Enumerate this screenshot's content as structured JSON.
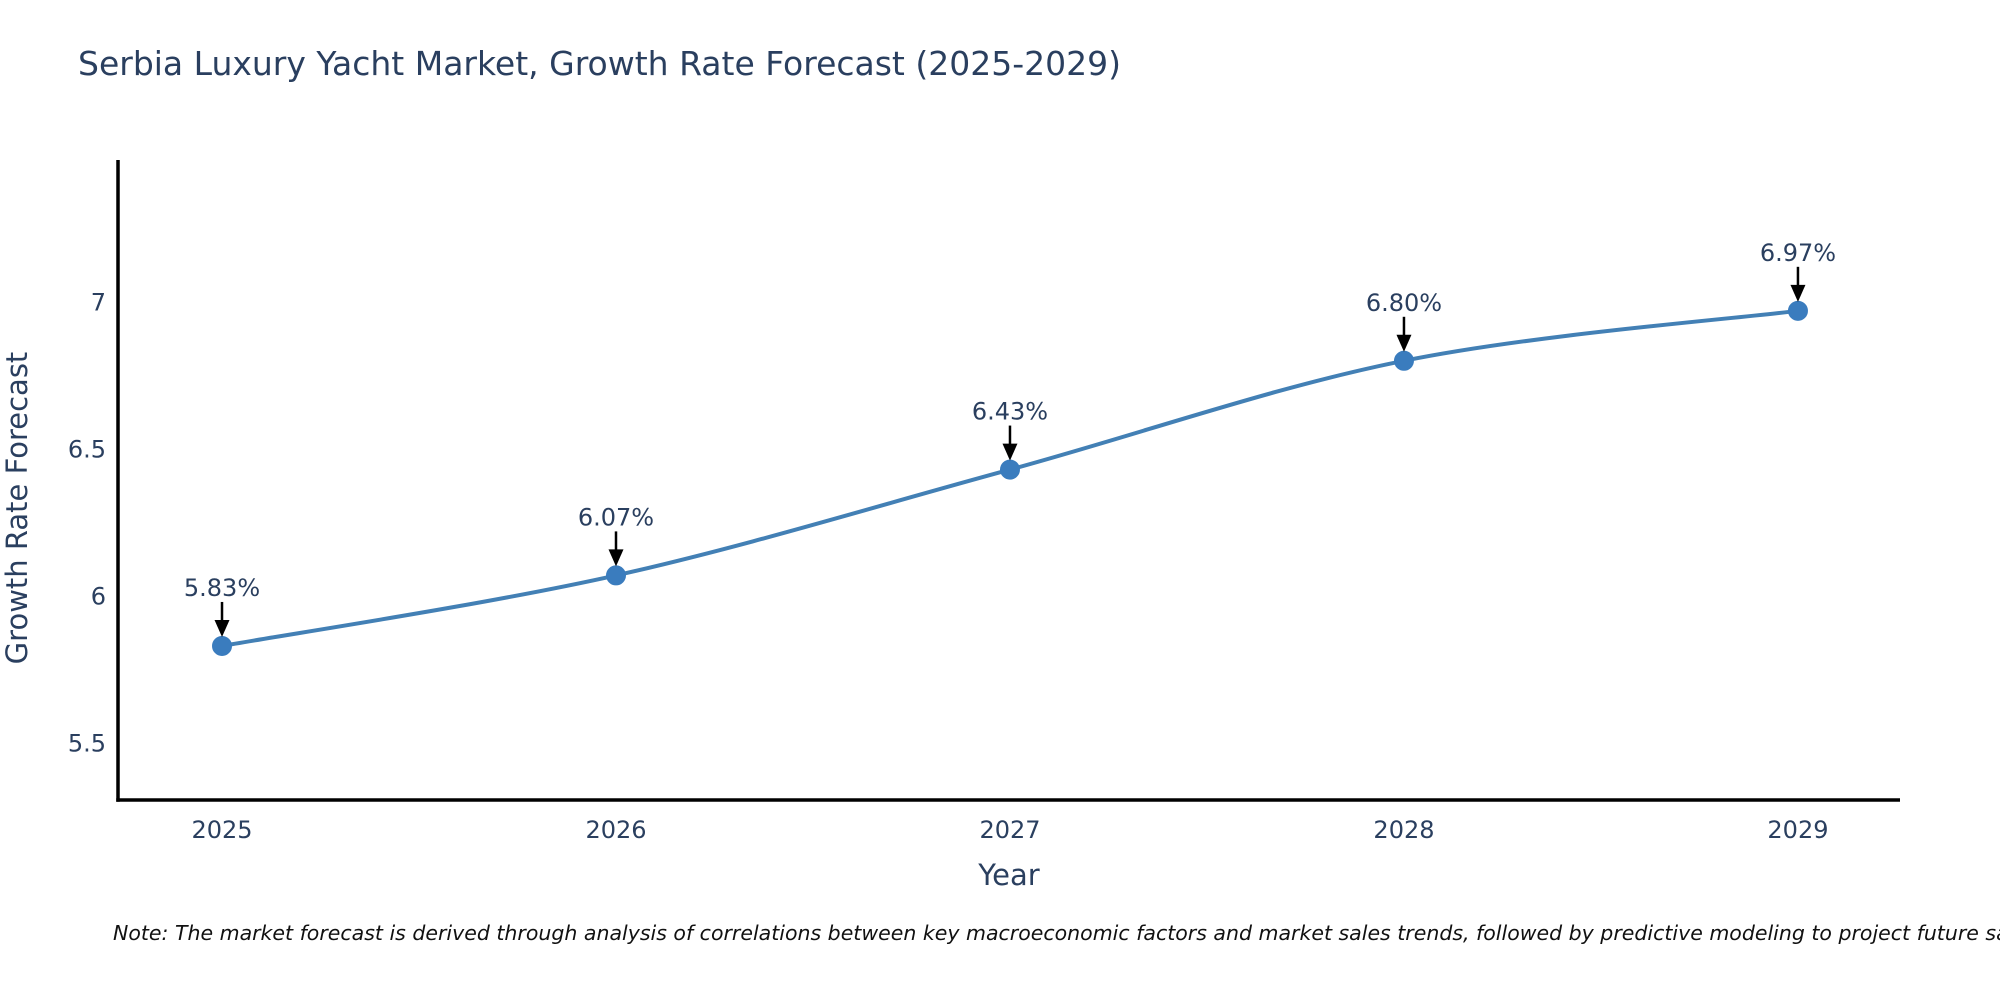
{
  "title": "Serbia Luxury Yacht Market, Growth Rate Forecast (2025-2029)",
  "note": "Note: The market forecast is derived through analysis of correlations between key macroeconomic factors and market sales trends, followed by predictive modeling to project future sales.",
  "chart_data": {
    "type": "line",
    "title": "Serbia Luxury Yacht Market, Growth Rate Forecast (2025-2029)",
    "x": [
      2025,
      2026,
      2027,
      2028,
      2029
    ],
    "categories": [
      "2025",
      "2026",
      "2027",
      "2028",
      "2029"
    ],
    "series": [
      {
        "name": "Growth Rate Forecast",
        "values": [
          5.83,
          6.07,
          6.43,
          6.8,
          6.97
        ]
      }
    ],
    "point_labels": [
      "5.83%",
      "6.07%",
      "6.43%",
      "6.80%",
      "6.97%"
    ],
    "xlabel": "Year",
    "ylabel": "Growth Rate Forecast",
    "yticks": [
      5.5,
      6,
      6.5,
      7
    ],
    "ytick_labels": [
      "5.5",
      "6",
      "6.5",
      "7"
    ],
    "ylim": [
      5.306,
      7.483
    ],
    "xlim": [
      2024.736,
      2029.259
    ],
    "line_shape": "spline",
    "grid": false,
    "legend_position": "none",
    "colors": {
      "line": "#4380b5",
      "marker": "#3a7cbe",
      "axis": "#000000",
      "text": "#2a3f5f",
      "arrow": "#000000",
      "background": "#ffffff"
    }
  }
}
